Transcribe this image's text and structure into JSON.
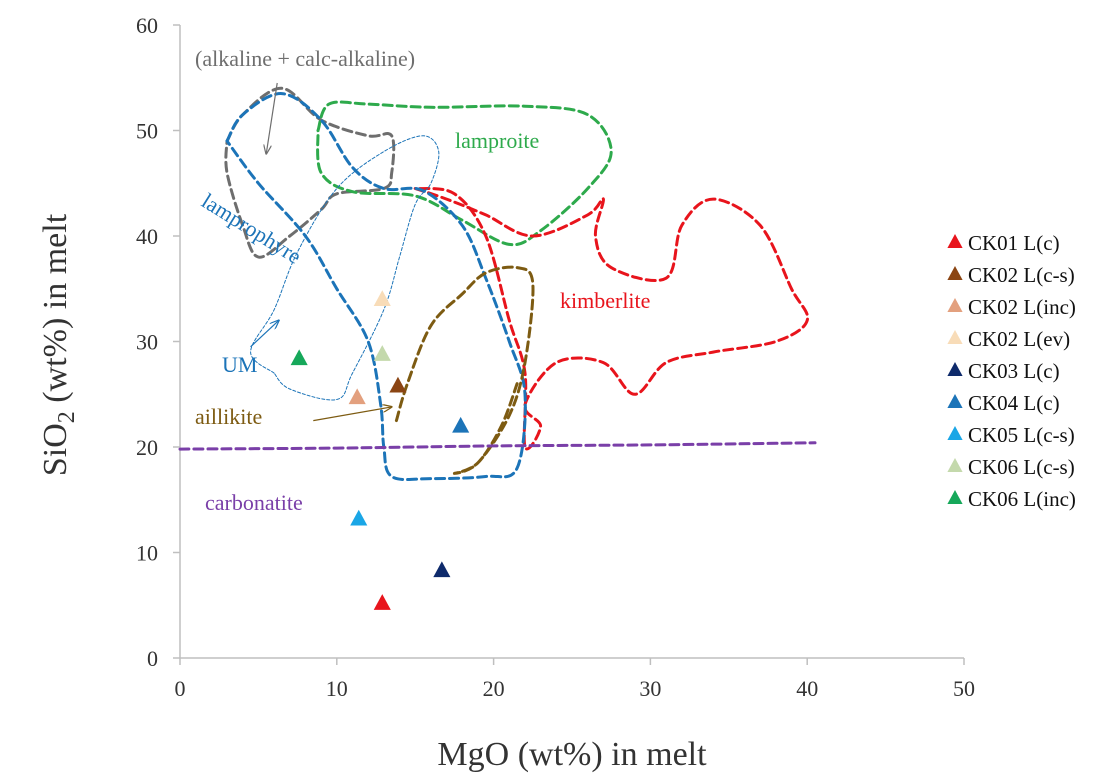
{
  "chart_data": {
    "type": "scatter",
    "xlabel": "MgO (wt%) in melt",
    "ylabel_parts": {
      "pre": "SiO",
      "sub": "2",
      "post": " (wt%) in melt"
    },
    "xlim": [
      0,
      50
    ],
    "ylim": [
      0,
      60
    ],
    "x_ticks": [
      0,
      10,
      20,
      30,
      40,
      50
    ],
    "y_ticks": [
      0,
      10,
      20,
      30,
      40,
      50,
      60
    ],
    "grid": false,
    "legend_position": "right",
    "series": [
      {
        "name": "CK01 L(c)",
        "color": "#e8141c",
        "points": [
          [
            12.9,
            5.2
          ]
        ]
      },
      {
        "name": "CK02 L(c-s)",
        "color": "#8b4513",
        "points": [
          [
            13.9,
            25.8
          ]
        ]
      },
      {
        "name": "CK02 L(inc)",
        "color": "#e3a07e",
        "points": [
          [
            11.3,
            24.7
          ]
        ]
      },
      {
        "name": "CK02 L(ev)",
        "color": "#f8dcb8",
        "points": [
          [
            12.9,
            34.0
          ]
        ]
      },
      {
        "name": "CK03 L(c)",
        "color": "#0e2a6b",
        "points": [
          [
            16.7,
            8.3
          ]
        ]
      },
      {
        "name": "CK04 L(c)",
        "color": "#1c74b8",
        "points": [
          [
            17.9,
            22.0
          ]
        ]
      },
      {
        "name": "CK05 L(c-s)",
        "color": "#1aa6e6",
        "points": [
          [
            11.4,
            13.2
          ]
        ]
      },
      {
        "name": "CK06 L(c-s)",
        "color": "#c4d9ac",
        "points": [
          [
            12.9,
            28.8
          ]
        ]
      },
      {
        "name": "CK06 L(inc)",
        "color": "#16a85a",
        "points": [
          [
            7.6,
            28.4
          ]
        ]
      }
    ],
    "fields": [
      {
        "label": "(alkaline + calc-alkaline)",
        "color": "#6e6e6e",
        "boundary": [
          [
            3,
            49
          ],
          [
            4,
            51.5
          ],
          [
            6.5,
            54
          ],
          [
            9,
            51
          ],
          [
            12,
            49.5
          ],
          [
            13.5,
            49.5
          ],
          [
            13.5,
            46
          ],
          [
            13,
            44.5
          ],
          [
            10,
            44
          ],
          [
            9,
            42.5
          ],
          [
            7,
            40
          ],
          [
            5,
            38
          ],
          [
            4,
            41
          ],
          [
            3,
            46
          ],
          [
            3,
            49
          ]
        ]
      },
      {
        "label": "lamproite",
        "color": "#2eaa4c",
        "boundary": [
          [
            8.8,
            50
          ],
          [
            9.5,
            52.5
          ],
          [
            12,
            52.5
          ],
          [
            16,
            52.2
          ],
          [
            22,
            52.3
          ],
          [
            26,
            51.5
          ],
          [
            27.5,
            48
          ],
          [
            26,
            44.5
          ],
          [
            23,
            40.5
          ],
          [
            21,
            39.2
          ],
          [
            18,
            41.5
          ],
          [
            15,
            43.8
          ],
          [
            11,
            44.2
          ],
          [
            9,
            46
          ],
          [
            8.8,
            50
          ]
        ]
      },
      {
        "label": "kimberlite",
        "color": "#e8141c",
        "boundary": [
          [
            15,
            44.5
          ],
          [
            17,
            43.5
          ],
          [
            19.5,
            42
          ],
          [
            22.5,
            40
          ],
          [
            26,
            42
          ],
          [
            27,
            43.5
          ],
          [
            26.5,
            40
          ],
          [
            27.5,
            37
          ],
          [
            31,
            36
          ],
          [
            32,
            41
          ],
          [
            34,
            43.5
          ],
          [
            37,
            41
          ],
          [
            39,
            35
          ],
          [
            40,
            32
          ],
          [
            38,
            30
          ],
          [
            34,
            29
          ],
          [
            31,
            28
          ],
          [
            29,
            25
          ],
          [
            27,
            28
          ],
          [
            24,
            28
          ],
          [
            22,
            24
          ],
          [
            23,
            22
          ],
          [
            22,
            20
          ],
          [
            22,
            27
          ],
          [
            21,
            32
          ],
          [
            19.5,
            40
          ],
          [
            17.5,
            44
          ],
          [
            15,
            44.5
          ]
        ]
      },
      {
        "label": "lamprophyre",
        "color": "#1c74b8",
        "boundary": [
          [
            3,
            49
          ],
          [
            4,
            51.5
          ],
          [
            6.5,
            53.5
          ],
          [
            9,
            51
          ],
          [
            11,
            46.5
          ],
          [
            13,
            44.5
          ],
          [
            15.5,
            44.3
          ],
          [
            18,
            41
          ],
          [
            19.5,
            36
          ],
          [
            21,
            30
          ],
          [
            22,
            25
          ],
          [
            21.5,
            18
          ],
          [
            19.5,
            17.2
          ],
          [
            16,
            17
          ],
          [
            13.5,
            17.2
          ],
          [
            13,
            20
          ],
          [
            12.8,
            24
          ],
          [
            12,
            30
          ],
          [
            10,
            35
          ],
          [
            8,
            40
          ],
          [
            5,
            45
          ],
          [
            3,
            49
          ]
        ]
      },
      {
        "label": "UM",
        "color": "#1c74b8",
        "boundary": [
          [
            6,
            27
          ],
          [
            4.5,
            29
          ],
          [
            6,
            33
          ],
          [
            7.5,
            38.5
          ],
          [
            10,
            44.5
          ],
          [
            13,
            48
          ],
          [
            15.5,
            49.5
          ],
          [
            16.5,
            48
          ],
          [
            16,
            45
          ],
          [
            15,
            43
          ],
          [
            14,
            38
          ],
          [
            13,
            33
          ],
          [
            11,
            27
          ],
          [
            10,
            24.5
          ],
          [
            7,
            25.5
          ],
          [
            6,
            27
          ]
        ]
      },
      {
        "label": "aillikite",
        "color": "#7d5b12",
        "boundary": [
          [
            13.8,
            22.5
          ],
          [
            14.5,
            26
          ],
          [
            16,
            31.5
          ],
          [
            18,
            34.5
          ],
          [
            19.5,
            36.5
          ],
          [
            21.5,
            37
          ],
          [
            22.5,
            35.5
          ],
          [
            22,
            28
          ],
          [
            21,
            23
          ],
          [
            19,
            18.5
          ],
          [
            17.5,
            17.5
          ],
          [
            19,
            18.5
          ],
          [
            20.5,
            22
          ],
          [
            21.5,
            26
          ]
        ]
      },
      {
        "label": "carbonatite",
        "color": "#7a3fa8",
        "boundary": [
          [
            0,
            19.8
          ],
          [
            10,
            19.9
          ],
          [
            20,
            20.1
          ],
          [
            30,
            20.2
          ],
          [
            40.5,
            20.4
          ]
        ]
      }
    ],
    "annotations": [
      {
        "target": "(alkaline + calc-alkaline)",
        "from": [
          6.2,
          54.5
        ],
        "to": [
          5.5,
          47.8
        ]
      },
      {
        "target": "UM",
        "from": [
          4.5,
          29.5
        ],
        "to": [
          6.3,
          32
        ]
      },
      {
        "target": "aillikite",
        "from": [
          8.5,
          22.5
        ],
        "to": [
          13.5,
          23.8
        ]
      }
    ]
  }
}
